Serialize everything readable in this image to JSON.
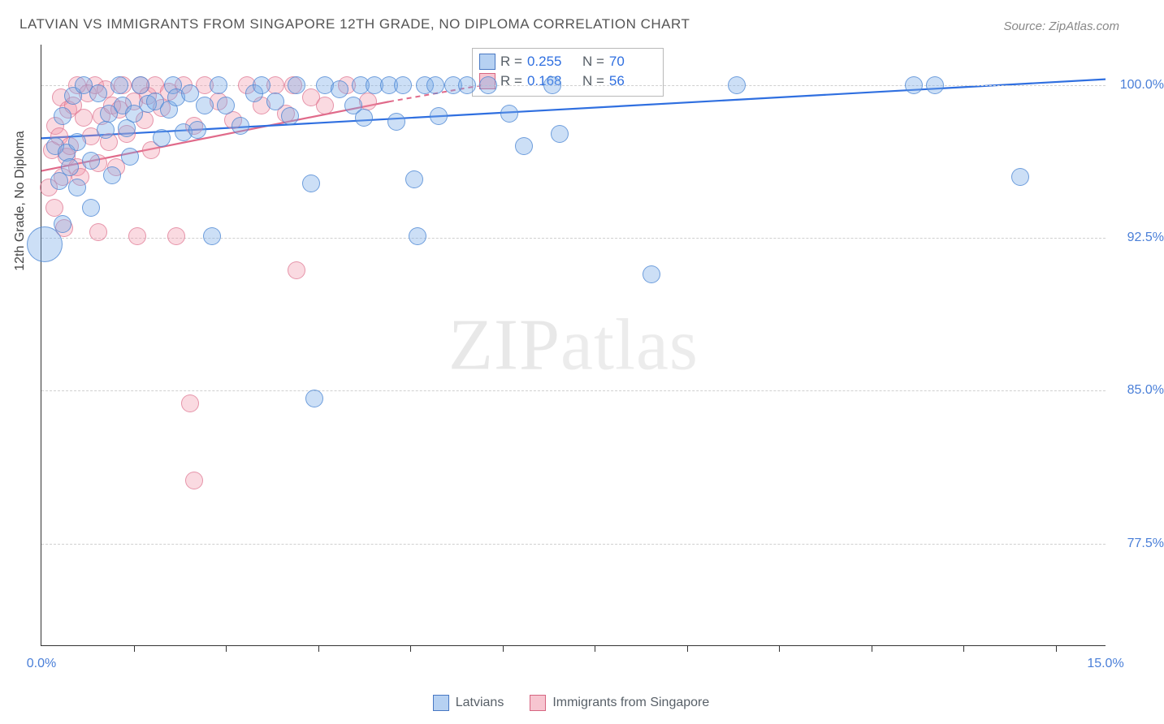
{
  "title": "LATVIAN VS IMMIGRANTS FROM SINGAPORE 12TH GRADE, NO DIPLOMA CORRELATION CHART",
  "source": "Source: ZipAtlas.com",
  "watermark": {
    "part1": "ZIP",
    "part2": "atlas"
  },
  "y_axis_label": "12th Grade, No Diploma",
  "chart": {
    "type": "scatter",
    "background_color": "#ffffff",
    "grid_color": "#d0d0d0",
    "x": {
      "min": 0.0,
      "max": 15.0,
      "label_min": "0.0%",
      "label_max": "15.0%",
      "tick_positions": [
        1.3,
        2.6,
        3.9,
        5.2,
        6.5,
        7.8,
        9.1,
        10.4,
        11.7,
        13.0,
        14.3
      ]
    },
    "y": {
      "min": 72.5,
      "max": 102.0,
      "ticks": [
        77.5,
        85.0,
        92.5,
        100.0
      ],
      "tick_labels": [
        "77.5%",
        "85.0%",
        "92.5%",
        "100.0%"
      ]
    },
    "series": {
      "blue": {
        "label": "Latvians",
        "color_fill": "rgba(122,171,232,0.38)",
        "color_stroke": "rgba(70,130,210,0.7)",
        "r_label": "R =",
        "r_value": "0.255",
        "n_label": "N =",
        "n_value": "70",
        "trend": {
          "x1": 0.0,
          "y1": 97.4,
          "x2": 15.0,
          "y2": 100.3,
          "stroke": "#2f6fe0",
          "width": 2.2
        },
        "marker_radius": 11,
        "points": [
          [
            0.05,
            92.2,
            22
          ],
          [
            0.2,
            97.0
          ],
          [
            0.25,
            95.3
          ],
          [
            0.3,
            98.5
          ],
          [
            0.35,
            96.7
          ],
          [
            0.4,
            96.0
          ],
          [
            0.45,
            99.5
          ],
          [
            0.5,
            97.2
          ],
          [
            0.5,
            95.0
          ],
          [
            0.6,
            100.0
          ],
          [
            0.7,
            96.3
          ],
          [
            0.8,
            99.6
          ],
          [
            0.9,
            97.8
          ],
          [
            0.95,
            98.6
          ],
          [
            1.0,
            95.6
          ],
          [
            1.1,
            100.0
          ],
          [
            1.15,
            99.0
          ],
          [
            1.2,
            97.9
          ],
          [
            1.25,
            96.5
          ],
          [
            1.3,
            98.6
          ],
          [
            1.4,
            100.0
          ],
          [
            1.5,
            99.1
          ],
          [
            1.6,
            99.2
          ],
          [
            1.7,
            97.4
          ],
          [
            1.8,
            98.8
          ],
          [
            1.85,
            100.0
          ],
          [
            1.9,
            99.4
          ],
          [
            2.0,
            97.7
          ],
          [
            2.1,
            99.6
          ],
          [
            2.2,
            97.8
          ],
          [
            2.3,
            99.0
          ],
          [
            2.4,
            92.6
          ],
          [
            2.5,
            100.0
          ],
          [
            2.6,
            99.0
          ],
          [
            2.8,
            98.0
          ],
          [
            3.0,
            99.6
          ],
          [
            3.1,
            100.0
          ],
          [
            3.3,
            99.2
          ],
          [
            3.5,
            98.5
          ],
          [
            3.6,
            100.0
          ],
          [
            3.8,
            95.2
          ],
          [
            3.85,
            84.6
          ],
          [
            4.0,
            100.0
          ],
          [
            4.2,
            99.8
          ],
          [
            4.4,
            99.0
          ],
          [
            4.5,
            100.0
          ],
          [
            4.55,
            98.4
          ],
          [
            4.7,
            100.0
          ],
          [
            4.9,
            100.0
          ],
          [
            5.0,
            98.2
          ],
          [
            5.1,
            100.0
          ],
          [
            5.25,
            95.4
          ],
          [
            5.3,
            92.6
          ],
          [
            5.4,
            100.0
          ],
          [
            5.55,
            100.0
          ],
          [
            5.6,
            98.5
          ],
          [
            5.8,
            100.0
          ],
          [
            6.0,
            100.0
          ],
          [
            6.3,
            100.0
          ],
          [
            6.6,
            98.6
          ],
          [
            6.8,
            97.0
          ],
          [
            7.2,
            100.0
          ],
          [
            7.3,
            97.6
          ],
          [
            8.6,
            90.7
          ],
          [
            9.8,
            100.0
          ],
          [
            12.3,
            100.0
          ],
          [
            12.6,
            100.0
          ],
          [
            13.8,
            95.5
          ],
          [
            0.3,
            93.2
          ],
          [
            0.7,
            94.0
          ]
        ]
      },
      "pink": {
        "label": "Immigrants from Singapore",
        "color_fill": "rgba(240,150,170,0.35)",
        "color_stroke": "rgba(220,110,140,0.65)",
        "r_label": "R =",
        "r_value": "0.168",
        "n_label": "N =",
        "n_value": "56",
        "trend": {
          "x1": 0.0,
          "y1": 95.8,
          "x2": 4.9,
          "y2": 99.2,
          "stroke": "#e06a8a",
          "width": 2.2
        },
        "trend_ext": {
          "x1": 4.9,
          "y1": 99.2,
          "x2": 6.2,
          "y2": 100.0,
          "dash": "6,5"
        },
        "marker_radius": 11,
        "points": [
          [
            0.1,
            95.0
          ],
          [
            0.15,
            96.8
          ],
          [
            0.18,
            94.0
          ],
          [
            0.2,
            98.0
          ],
          [
            0.25,
            97.5
          ],
          [
            0.28,
            99.4
          ],
          [
            0.3,
            95.5
          ],
          [
            0.32,
            93.0
          ],
          [
            0.35,
            96.5
          ],
          [
            0.38,
            98.8
          ],
          [
            0.4,
            97.0
          ],
          [
            0.45,
            99.0
          ],
          [
            0.5,
            96.0
          ],
          [
            0.5,
            100.0
          ],
          [
            0.55,
            95.5
          ],
          [
            0.6,
            98.4
          ],
          [
            0.65,
            99.6
          ],
          [
            0.7,
            97.5
          ],
          [
            0.75,
            100.0
          ],
          [
            0.8,
            96.2
          ],
          [
            0.8,
            92.8
          ],
          [
            0.85,
            98.5
          ],
          [
            0.9,
            99.8
          ],
          [
            0.95,
            97.2
          ],
          [
            1.0,
            99.0
          ],
          [
            1.05,
            96.0
          ],
          [
            1.1,
            98.8
          ],
          [
            1.15,
            100.0
          ],
          [
            1.2,
            97.6
          ],
          [
            1.3,
            99.2
          ],
          [
            1.35,
            92.6
          ],
          [
            1.4,
            100.0
          ],
          [
            1.45,
            98.3
          ],
          [
            1.5,
            99.5
          ],
          [
            1.55,
            96.8
          ],
          [
            1.6,
            100.0
          ],
          [
            1.7,
            98.9
          ],
          [
            1.8,
            99.7
          ],
          [
            1.9,
            92.6
          ],
          [
            2.0,
            100.0
          ],
          [
            2.1,
            84.4
          ],
          [
            2.15,
            98.0
          ],
          [
            2.15,
            80.6
          ],
          [
            2.3,
            100.0
          ],
          [
            2.5,
            99.2
          ],
          [
            2.7,
            98.3
          ],
          [
            2.9,
            100.0
          ],
          [
            3.1,
            99.0
          ],
          [
            3.3,
            100.0
          ],
          [
            3.45,
            98.6
          ],
          [
            3.55,
            100.0
          ],
          [
            3.6,
            90.9
          ],
          [
            3.8,
            99.4
          ],
          [
            4.0,
            99.0
          ],
          [
            4.3,
            100.0
          ],
          [
            4.6,
            99.2
          ]
        ]
      }
    }
  }
}
